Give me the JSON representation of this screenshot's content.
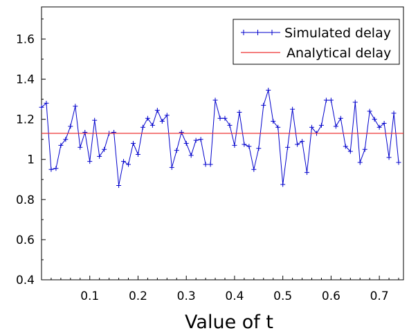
{
  "chart_data": {
    "type": "line",
    "xlabel": "Value of t",
    "ylabel": "",
    "xlim": [
      0.0,
      0.75
    ],
    "ylim": [
      0.4,
      1.76
    ],
    "x_ticks": [
      0.1,
      0.2,
      0.3,
      0.4,
      0.5,
      0.6,
      0.7
    ],
    "y_ticks": [
      0.4,
      0.6,
      0.8,
      1,
      1.2,
      1.4,
      1.6
    ],
    "x_tick_labels": [
      "0.1",
      "0.2",
      "0.3",
      "0.4",
      "0.5",
      "0.6",
      "0.7"
    ],
    "y_tick_labels": [
      "0.4",
      "0.6",
      "0.8",
      "1",
      "1.2",
      "1.4",
      "1.6"
    ],
    "legend_position": "top-right",
    "grid": false,
    "series": [
      {
        "name": "Simulated delay",
        "color": "#0000cc",
        "marker": "plus",
        "x": [
          0.0,
          0.01,
          0.02,
          0.03,
          0.04,
          0.05,
          0.06,
          0.07,
          0.08,
          0.09,
          0.1,
          0.11,
          0.12,
          0.13,
          0.14,
          0.15,
          0.16,
          0.17,
          0.18,
          0.19,
          0.2,
          0.21,
          0.22,
          0.23,
          0.24,
          0.25,
          0.26,
          0.27,
          0.28,
          0.29,
          0.3,
          0.31,
          0.32,
          0.33,
          0.34,
          0.35,
          0.36,
          0.37,
          0.38,
          0.39,
          0.4,
          0.41,
          0.42,
          0.43,
          0.44,
          0.45,
          0.46,
          0.47,
          0.48,
          0.49,
          0.5,
          0.51,
          0.52,
          0.53,
          0.54,
          0.55,
          0.56,
          0.57,
          0.58,
          0.59,
          0.6,
          0.61,
          0.62,
          0.63,
          0.64,
          0.65,
          0.66,
          0.67,
          0.68,
          0.69,
          0.7,
          0.71,
          0.72,
          0.73,
          0.74
        ],
        "y": [
          1.26,
          1.28,
          0.95,
          0.955,
          1.07,
          1.1,
          1.165,
          1.265,
          1.06,
          1.135,
          0.99,
          1.195,
          1.015,
          1.05,
          1.13,
          1.135,
          0.87,
          0.99,
          0.975,
          1.08,
          1.025,
          1.16,
          1.205,
          1.17,
          1.245,
          1.19,
          1.22,
          0.96,
          1.045,
          1.135,
          1.08,
          1.02,
          1.095,
          1.1,
          0.975,
          0.975,
          1.295,
          1.205,
          1.205,
          1.17,
          1.07,
          1.235,
          1.075,
          1.065,
          0.95,
          1.055,
          1.27,
          1.345,
          1.19,
          1.16,
          0.875,
          1.06,
          1.25,
          1.075,
          1.09,
          0.935,
          1.16,
          1.13,
          1.17,
          1.295,
          1.295,
          1.165,
          1.205,
          1.065,
          1.04,
          1.285,
          0.985,
          1.05,
          1.24,
          1.2,
          1.16,
          1.18,
          1.01,
          1.23,
          0.985
        ]
      },
      {
        "name": "Analytical delay",
        "color": "#ee3333",
        "marker": "none",
        "x": [
          0.0,
          0.75
        ],
        "y": [
          1.13,
          1.13
        ]
      }
    ]
  }
}
